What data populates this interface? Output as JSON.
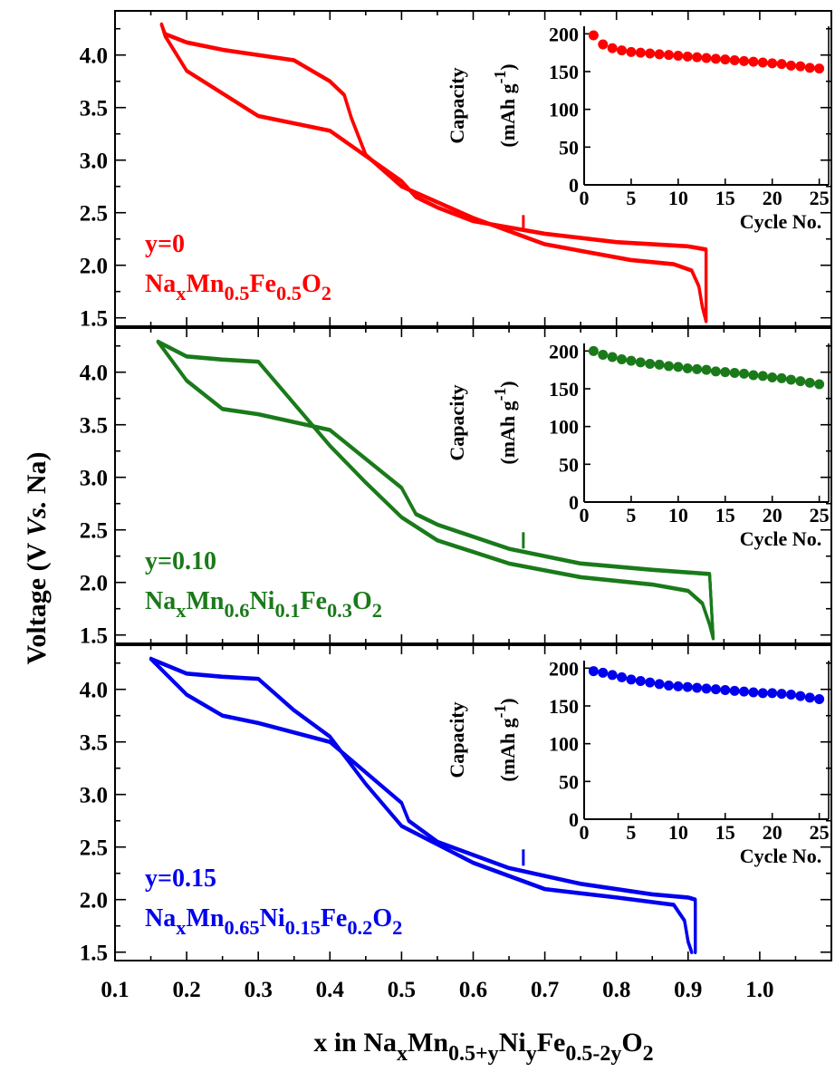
{
  "ylabel": {
    "main": "Voltage (V ",
    "italic": "Vs.",
    "tail": " Na)"
  },
  "xlabel": {
    "parts": [
      {
        "t": "x in Na",
        "sub": false
      },
      {
        "t": "x",
        "sub": true
      },
      {
        "t": "Mn",
        "sub": false
      },
      {
        "t": "0.5+y",
        "sub": true
      },
      {
        "t": "Ni",
        "sub": false
      },
      {
        "t": "y",
        "sub": true
      },
      {
        "t": "Fe",
        "sub": false
      },
      {
        "t": "0.5-2y",
        "sub": true
      },
      {
        "t": "O",
        "sub": false
      },
      {
        "t": "2",
        "sub": true
      }
    ]
  },
  "x_ticks": [
    "0.1",
    "0.2",
    "0.3",
    "0.4",
    "0.5",
    "0.6",
    "0.7",
    "0.8",
    "0.9",
    "1.0"
  ],
  "y_ticks": [
    "1.5",
    "2.0",
    "2.5",
    "3.0",
    "3.5",
    "4.0"
  ],
  "inset": {
    "ylabel_line1": "Capacity",
    "ylabel_line2_main": "(mAh g",
    "ylabel_line2_sup": "-1",
    "ylabel_line2_tail": ")",
    "xlabel": "Cycle No.",
    "x_ticks": [
      "0",
      "5",
      "10",
      "15",
      "20",
      "25"
    ],
    "y_ticks": [
      "0",
      "50",
      "100",
      "150",
      "200"
    ]
  },
  "chart_data": [
    {
      "type": "line",
      "panel": "y=0",
      "color": "#ff0000",
      "label_y": "y=0",
      "formula": [
        {
          "t": "Na",
          "sub": false
        },
        {
          "t": "x",
          "sub": true
        },
        {
          "t": "Mn",
          "sub": false
        },
        {
          "t": "0.5",
          "sub": true
        },
        {
          "t": "Fe",
          "sub": false
        },
        {
          "t": "0.5",
          "sub": true
        },
        {
          "t": "O",
          "sub": false
        },
        {
          "t": "2",
          "sub": true
        }
      ],
      "xlim": [
        0.1,
        1.1
      ],
      "ylim": [
        1.42,
        4.42
      ],
      "series": [
        {
          "x": [
            0.925,
            0.92,
            0.915,
            0.905,
            0.88,
            0.82,
            0.7,
            0.6,
            0.5,
            0.45,
            0.43,
            0.42,
            0.4,
            0.35,
            0.25,
            0.2,
            0.17,
            0.165
          ],
          "y": [
            1.47,
            1.6,
            1.8,
            1.95,
            2.01,
            2.05,
            2.2,
            2.45,
            2.75,
            3.05,
            3.4,
            3.62,
            3.75,
            3.95,
            4.05,
            4.12,
            4.2,
            4.29
          ]
        },
        {
          "x": [
            0.165,
            0.17,
            0.2,
            0.3,
            0.4,
            0.5,
            0.52,
            0.55,
            0.6,
            0.7,
            0.8,
            0.9,
            0.925,
            0.925
          ],
          "y": [
            4.29,
            4.18,
            3.85,
            3.42,
            3.28,
            2.8,
            2.65,
            2.55,
            2.42,
            2.3,
            2.22,
            2.18,
            2.15,
            1.47
          ]
        }
      ],
      "inset": {
        "cycles": [
          1,
          2,
          3,
          4,
          5,
          6,
          7,
          8,
          9,
          10,
          11,
          12,
          13,
          14,
          15,
          16,
          17,
          18,
          19,
          20,
          21,
          22,
          23,
          24,
          25
        ],
        "capacity": [
          198,
          186,
          181,
          178,
          176,
          175,
          174,
          173,
          172,
          171,
          170,
          169,
          168,
          167,
          166,
          165,
          164,
          163,
          162,
          161,
          160,
          158,
          157,
          155,
          154
        ]
      }
    },
    {
      "type": "line",
      "panel": "y=0.10",
      "color": "#1a7a1a",
      "label_y": "y=0.10",
      "formula": [
        {
          "t": "Na",
          "sub": false
        },
        {
          "t": "x",
          "sub": true
        },
        {
          "t": "Mn",
          "sub": false
        },
        {
          "t": "0.6",
          "sub": true
        },
        {
          "t": "Ni",
          "sub": false
        },
        {
          "t": "0.1",
          "sub": true
        },
        {
          "t": "Fe",
          "sub": false
        },
        {
          "t": "0.3",
          "sub": true
        },
        {
          "t": "O",
          "sub": false
        },
        {
          "t": "2",
          "sub": true
        }
      ],
      "xlim": [
        0.1,
        1.1
      ],
      "ylim": [
        1.42,
        4.42
      ],
      "series": [
        {
          "x": [
            0.935,
            0.93,
            0.92,
            0.9,
            0.85,
            0.75,
            0.65,
            0.55,
            0.5,
            0.45,
            0.4,
            0.35,
            0.3,
            0.25,
            0.2,
            0.16
          ],
          "y": [
            1.47,
            1.6,
            1.8,
            1.92,
            1.98,
            2.05,
            2.18,
            2.4,
            2.62,
            2.95,
            3.3,
            3.7,
            4.1,
            4.12,
            4.15,
            4.29
          ]
        },
        {
          "x": [
            0.16,
            0.2,
            0.25,
            0.3,
            0.4,
            0.5,
            0.52,
            0.55,
            0.65,
            0.75,
            0.85,
            0.93,
            0.935
          ],
          "y": [
            4.29,
            3.92,
            3.65,
            3.6,
            3.45,
            2.9,
            2.65,
            2.55,
            2.32,
            2.18,
            2.12,
            2.08,
            1.47
          ]
        }
      ],
      "inset": {
        "cycles": [
          1,
          2,
          3,
          4,
          5,
          6,
          7,
          8,
          9,
          10,
          11,
          12,
          13,
          14,
          15,
          16,
          17,
          18,
          19,
          20,
          21,
          22,
          23,
          24,
          25
        ],
        "capacity": [
          200,
          195,
          192,
          189,
          187,
          185,
          183,
          182,
          180,
          179,
          177,
          176,
          175,
          173,
          172,
          171,
          170,
          168,
          167,
          165,
          164,
          162,
          160,
          158,
          156
        ]
      }
    },
    {
      "type": "line",
      "panel": "y=0.15",
      "color": "#0000ee",
      "label_y": "y=0.15",
      "formula": [
        {
          "t": "Na",
          "sub": false
        },
        {
          "t": "x",
          "sub": true
        },
        {
          "t": "Mn",
          "sub": false
        },
        {
          "t": "0.65",
          "sub": true
        },
        {
          "t": "Ni",
          "sub": false
        },
        {
          "t": "0.15",
          "sub": true
        },
        {
          "t": "Fe",
          "sub": false
        },
        {
          "t": "0.2",
          "sub": true
        },
        {
          "t": "O",
          "sub": false
        },
        {
          "t": "2",
          "sub": true
        }
      ],
      "xlim": [
        0.1,
        1.1
      ],
      "ylim": [
        1.42,
        4.42
      ],
      "series": [
        {
          "x": [
            0.905,
            0.9,
            0.895,
            0.88,
            0.8,
            0.7,
            0.6,
            0.5,
            0.45,
            0.4,
            0.35,
            0.3,
            0.25,
            0.2,
            0.15
          ],
          "y": [
            1.5,
            1.6,
            1.8,
            1.95,
            2.02,
            2.1,
            2.35,
            2.7,
            3.1,
            3.55,
            3.8,
            4.1,
            4.12,
            4.15,
            4.29
          ]
        },
        {
          "x": [
            0.15,
            0.2,
            0.25,
            0.3,
            0.4,
            0.5,
            0.51,
            0.55,
            0.65,
            0.75,
            0.85,
            0.9,
            0.91,
            0.91
          ],
          "y": [
            4.29,
            3.95,
            3.75,
            3.68,
            3.5,
            2.92,
            2.75,
            2.55,
            2.3,
            2.15,
            2.05,
            2.02,
            2.0,
            1.5
          ]
        }
      ],
      "inset": {
        "cycles": [
          1,
          2,
          3,
          4,
          5,
          6,
          7,
          8,
          9,
          10,
          11,
          12,
          13,
          14,
          15,
          16,
          17,
          18,
          19,
          20,
          21,
          22,
          23,
          24,
          25
        ],
        "capacity": [
          196,
          194,
          191,
          188,
          185,
          183,
          181,
          179,
          177,
          176,
          175,
          174,
          173,
          172,
          171,
          170,
          169,
          168,
          167,
          167,
          166,
          165,
          163,
          161,
          159
        ]
      }
    }
  ]
}
